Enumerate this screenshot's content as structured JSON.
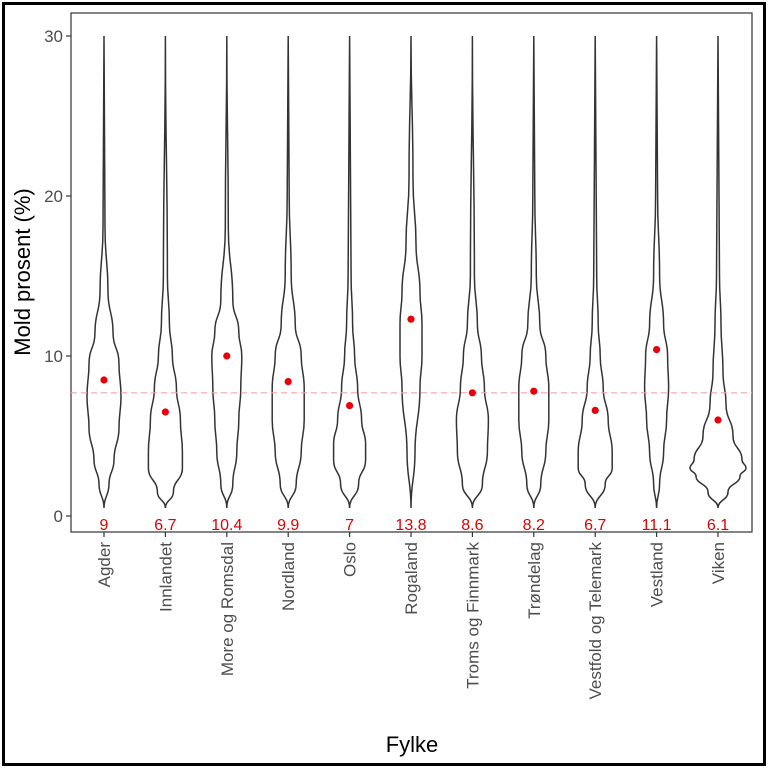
{
  "chart_data": {
    "type": "violin",
    "xlabel": "Fylke",
    "ylabel": "Mold prosent (%)",
    "ylim": [
      -1.2,
      31.5
    ],
    "yticks": [
      0,
      10,
      20,
      30
    ],
    "reference_line": {
      "y": 7.7,
      "color": "#f4a7a7",
      "style": "dashed"
    },
    "categories": [
      "Agder",
      "Innlandet",
      "More og Romsdal",
      "Nordland",
      "Oslo",
      "Rogaland",
      "Troms og Finnmark",
      "Trøndelag",
      "Vestfold og Telemark",
      "Vestland",
      "Viken"
    ],
    "mean_values": [
      8.5,
      6.5,
      10.0,
      8.4,
      6.9,
      12.3,
      7.7,
      7.8,
      6.6,
      10.4,
      6.0
    ],
    "median_labels": [
      "9",
      "6.7",
      "10.4",
      "9.9",
      "7",
      "13.8",
      "8.6",
      "8.2",
      "6.7",
      "11.1",
      "6.1"
    ],
    "violin_profiles": [
      [
        [
          0.5,
          0
        ],
        [
          2,
          5
        ],
        [
          3.5,
          10
        ],
        [
          5.5,
          15
        ],
        [
          7.5,
          17
        ],
        [
          9.5,
          15
        ],
        [
          11.5,
          9
        ],
        [
          14,
          4
        ],
        [
          18,
          1
        ],
        [
          30,
          0
        ]
      ],
      [
        [
          0.5,
          0
        ],
        [
          1.5,
          8
        ],
        [
          3,
          17
        ],
        [
          4,
          17
        ],
        [
          6,
          15
        ],
        [
          8,
          11
        ],
        [
          10,
          7
        ],
        [
          12,
          4
        ],
        [
          15,
          2
        ],
        [
          30,
          0
        ]
      ],
      [
        [
          0.5,
          0
        ],
        [
          2,
          6
        ],
        [
          4,
          10
        ],
        [
          6,
          12
        ],
        [
          8,
          14
        ],
        [
          10,
          15
        ],
        [
          11.5,
          12
        ],
        [
          13.5,
          6
        ],
        [
          18,
          1.5
        ],
        [
          30,
          0
        ]
      ],
      [
        [
          0.5,
          0
        ],
        [
          2,
          8
        ],
        [
          4,
          13
        ],
        [
          6,
          16
        ],
        [
          8,
          16
        ],
        [
          10,
          13
        ],
        [
          12,
          7
        ],
        [
          15,
          3
        ],
        [
          20,
          1
        ],
        [
          30,
          0
        ]
      ],
      [
        [
          0.5,
          0
        ],
        [
          2,
          9
        ],
        [
          3.5,
          16
        ],
        [
          4.5,
          16
        ],
        [
          6,
          12
        ],
        [
          8,
          8
        ],
        [
          10,
          5
        ],
        [
          12,
          3
        ],
        [
          15,
          1.5
        ],
        [
          30,
          0
        ]
      ],
      [
        [
          0.5,
          0
        ],
        [
          4,
          4
        ],
        [
          8,
          9
        ],
        [
          10,
          11
        ],
        [
          12,
          11
        ],
        [
          14,
          9
        ],
        [
          17,
          5
        ],
        [
          21,
          2
        ],
        [
          30,
          0
        ]
      ],
      [
        [
          0.5,
          0
        ],
        [
          2,
          10
        ],
        [
          4,
          15
        ],
        [
          6,
          16
        ],
        [
          8,
          12
        ],
        [
          10,
          9
        ],
        [
          12,
          5
        ],
        [
          15,
          2
        ],
        [
          30,
          0
        ]
      ],
      [
        [
          0.5,
          0
        ],
        [
          2,
          7
        ],
        [
          4,
          12
        ],
        [
          6,
          15
        ],
        [
          8,
          15
        ],
        [
          10,
          12
        ],
        [
          12,
          6
        ],
        [
          15,
          2.5
        ],
        [
          20,
          1
        ],
        [
          30,
          0
        ]
      ],
      [
        [
          0.5,
          0
        ],
        [
          2,
          10
        ],
        [
          3,
          17
        ],
        [
          4,
          17
        ],
        [
          6,
          13
        ],
        [
          8,
          8
        ],
        [
          10,
          5
        ],
        [
          12,
          3
        ],
        [
          15,
          1.5
        ],
        [
          30,
          0
        ]
      ],
      [
        [
          0.5,
          0
        ],
        [
          2,
          3
        ],
        [
          4,
          7
        ],
        [
          6,
          10
        ],
        [
          8,
          12
        ],
        [
          10,
          11
        ],
        [
          12,
          7
        ],
        [
          15,
          3
        ],
        [
          20,
          1
        ],
        [
          30,
          0
        ]
      ],
      [
        [
          0.5,
          0
        ],
        [
          1.5,
          10
        ],
        [
          2.5,
          22
        ],
        [
          3,
          28
        ],
        [
          3.5,
          24
        ],
        [
          5,
          15
        ],
        [
          7,
          8
        ],
        [
          9,
          5
        ],
        [
          12,
          3
        ],
        [
          15,
          1.5
        ],
        [
          30,
          0
        ]
      ]
    ],
    "grid": false,
    "legend": "none"
  },
  "colors": {
    "violin_stroke": "#333333",
    "mean_point": "#e8000b",
    "median_label": "#e00000",
    "ref_line": "#f4a7a7"
  }
}
